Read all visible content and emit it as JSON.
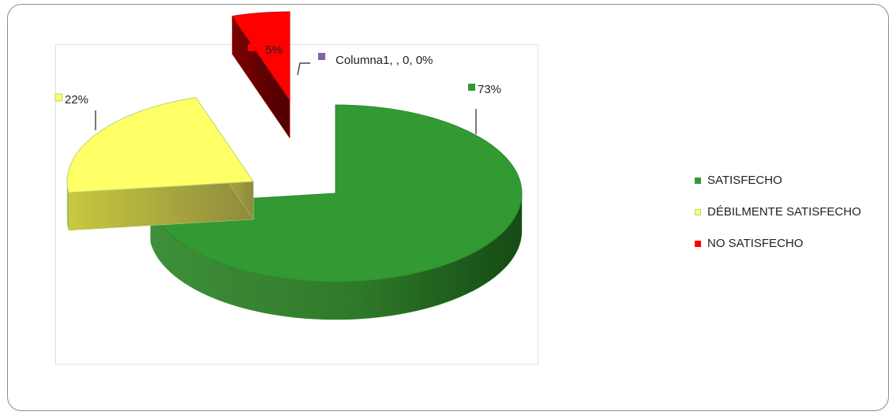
{
  "chart_data": {
    "type": "pie",
    "title": "",
    "style": "3d-exploded",
    "slices": [
      {
        "name": "SATISFECHO",
        "value": 73,
        "label": "73%",
        "color": "#339933"
      },
      {
        "name": "DÉBILMENTE SATISFECHO",
        "value": 22,
        "label": "22%",
        "color": "#FFFF66"
      },
      {
        "name": "NO SATISFECHO",
        "value": 5,
        "label": "5%",
        "color": "#FF0000"
      },
      {
        "name": "Columna1",
        "value": 0,
        "label": "Columna1, , 0, 0%",
        "color": "#8064A2"
      }
    ],
    "legend": {
      "position": "right",
      "entries": [
        "SATISFECHO",
        "DÉBILMENTE SATISFECHO",
        "NO SATISFECHO"
      ]
    }
  }
}
